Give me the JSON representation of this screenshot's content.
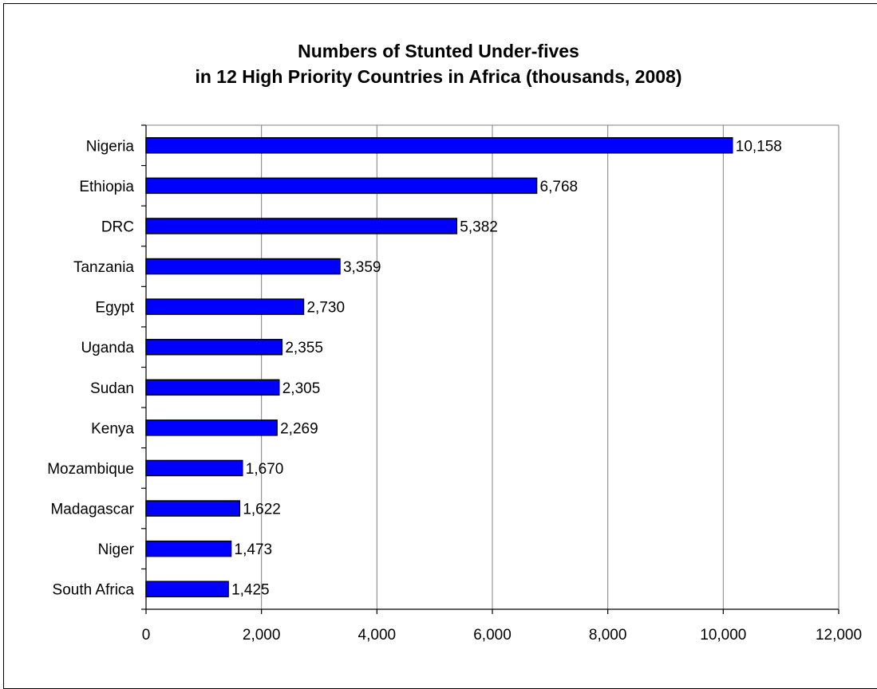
{
  "chart_data": {
    "type": "bar",
    "orientation": "horizontal",
    "title": [
      "Numbers of Stunted Under-fives",
      "in 12 High Priority Countries in Africa (thousands, 2008)"
    ],
    "xlabel": "",
    "ylabel": "",
    "categories": [
      "Nigeria",
      "Ethiopia",
      "DRC",
      "Tanzania",
      "Egypt",
      "Uganda",
      "Sudan",
      "Kenya",
      "Mozambique",
      "Madagascar",
      "Niger",
      "South Africa"
    ],
    "values": [
      10158,
      6768,
      5382,
      3359,
      2730,
      2355,
      2305,
      2269,
      1670,
      1622,
      1473,
      1425
    ],
    "value_labels": [
      "10,158",
      "6,768",
      "5,382",
      "3,359",
      "2,730",
      "2,355",
      "2,305",
      "2,269",
      "1,670",
      "1,622",
      "1,473",
      "1,425"
    ],
    "xlim": [
      0,
      12000
    ],
    "xticks": [
      0,
      2000,
      4000,
      6000,
      8000,
      10000,
      12000
    ],
    "xtick_labels": [
      "0",
      "2,000",
      "4,000",
      "6,000",
      "8,000",
      "10,000",
      "12,000"
    ],
    "grid": "vertical",
    "legend": "none",
    "colors": {
      "bar_fill": "#0000ff",
      "bar_stroke": "#000000",
      "gridline": "#808080",
      "plot_border": "#808080"
    }
  }
}
